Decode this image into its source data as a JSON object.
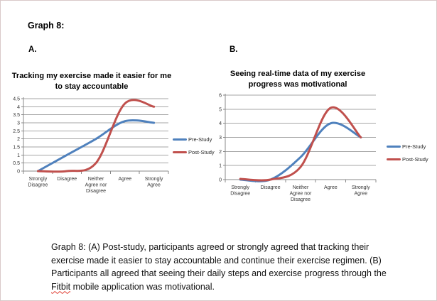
{
  "page": {
    "heading": "Graph 8:",
    "panel_a_label": "A.",
    "panel_b_label": "B."
  },
  "colors": {
    "pre_study": "#4f81bd",
    "post_study": "#c0504d",
    "gridline": "#a6a6a6",
    "axis": "#898989",
    "tick_text": "#333333"
  },
  "chart_data": [
    {
      "type": "line",
      "panel": "A",
      "title": "Tracking my exercise made it easier for me to stay accountable",
      "categories": [
        "Strongly\nDisagree",
        "Disagree",
        "Neither\nAgree nor\nDisagree",
        "Agree",
        "Strongly\nAgree"
      ],
      "series": [
        {
          "name": "Pre-Study",
          "color": "#4f81bd",
          "values": [
            0,
            1,
            2,
            3.1,
            3
          ]
        },
        {
          "name": "Post-Study",
          "color": "#c0504d",
          "values": [
            0,
            0,
            0.5,
            4.2,
            4
          ]
        }
      ],
      "ylim": [
        0,
        4.5
      ],
      "ystep": 0.5,
      "grid": true,
      "legend_position": "right",
      "smooth": true
    },
    {
      "type": "line",
      "panel": "B",
      "title": "Seeing real-time data of my exercise progress was motivational",
      "categories": [
        "Strongly\nDisagree",
        "Disagree",
        "Neither\nAgree nor\nDisagree",
        "Agree",
        "Strongly\nAgree"
      ],
      "series": [
        {
          "name": "Pre-Study",
          "color": "#4f81bd",
          "values": [
            0,
            0,
            1.6,
            4,
            3
          ]
        },
        {
          "name": "Post-Study",
          "color": "#c0504d",
          "values": [
            0.05,
            0,
            0.9,
            5.1,
            3
          ]
        }
      ],
      "ylim": [
        0,
        6
      ],
      "ystep": 1,
      "grid": true,
      "legend_position": "right",
      "smooth": true
    }
  ],
  "caption": {
    "text_before": "Graph 8: (A) Post-study, participants agreed or strongly agreed that tracking their exercise made it easier to stay accountable and continue their exercise regimen. (B) Participants all agreed that seeing their daily steps and exercise progress through the ",
    "highlighted_word": "Fitbit",
    "text_after": " mobile application was motivational."
  }
}
